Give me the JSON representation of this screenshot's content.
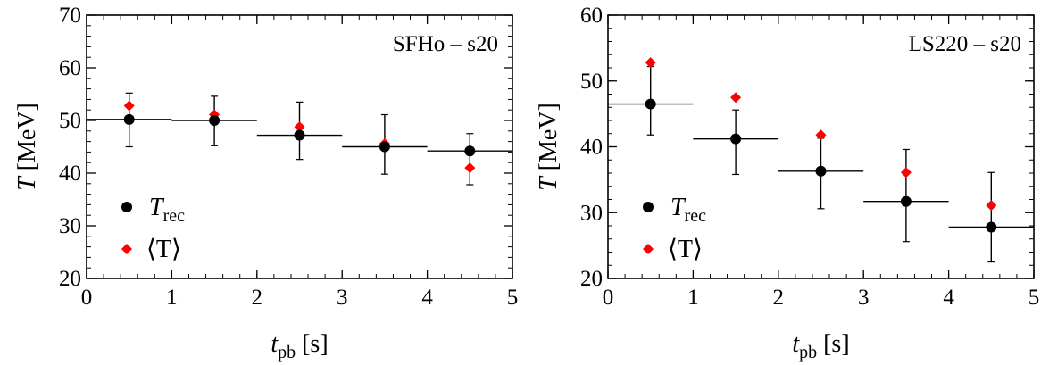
{
  "chart_data": [
    {
      "type": "scatter",
      "annotation": "SFHo – s20",
      "xlabel": {
        "main": "t",
        "sub": "pb",
        "unit": " [s]"
      },
      "ylabel": {
        "main": "T",
        "unit": " [MeV]"
      },
      "xlim": [
        0,
        5
      ],
      "ylim": [
        20,
        70
      ],
      "xticks": [
        0,
        1,
        2,
        3,
        4,
        5
      ],
      "yticks": [
        20,
        30,
        40,
        50,
        60,
        70
      ],
      "legend_position": "bottom-left",
      "series": [
        {
          "name": {
            "main": "T",
            "sub": "rec"
          },
          "marker": "circle",
          "color": "#000000",
          "x": [
            0.5,
            1.5,
            2.5,
            3.5,
            4.5
          ],
          "y": [
            50.2,
            50.0,
            47.2,
            45.0,
            44.2
          ],
          "xerr": [
            0.5,
            0.5,
            0.5,
            0.5,
            0.5
          ],
          "yerr_low": [
            5.2,
            4.8,
            4.6,
            5.2,
            6.4
          ],
          "yerr_high": [
            5.0,
            4.6,
            6.3,
            6.1,
            3.3
          ]
        },
        {
          "name": {
            "main": "⟨T⟩"
          },
          "marker": "diamond",
          "color": "#ff0000",
          "x": [
            0.5,
            1.5,
            2.5,
            3.5,
            4.5
          ],
          "y": [
            52.8,
            51.1,
            48.8,
            45.6,
            41.0
          ]
        }
      ]
    },
    {
      "type": "scatter",
      "annotation": "LS220 – s20",
      "xlabel": {
        "main": "t",
        "sub": "pb",
        "unit": " [s]"
      },
      "ylabel": {
        "main": "T",
        "unit": " [MeV]"
      },
      "xlim": [
        0,
        5
      ],
      "ylim": [
        20,
        60
      ],
      "xticks": [
        0,
        1,
        2,
        3,
        4,
        5
      ],
      "yticks": [
        20,
        30,
        40,
        50,
        60
      ],
      "legend_position": "bottom-left",
      "series": [
        {
          "name": {
            "main": "T",
            "sub": "rec"
          },
          "marker": "circle",
          "color": "#000000",
          "x": [
            0.5,
            1.5,
            2.5,
            3.5,
            4.5
          ],
          "y": [
            46.5,
            41.2,
            36.3,
            31.7,
            27.8
          ],
          "xerr": [
            0.5,
            0.5,
            0.5,
            0.5,
            0.5
          ],
          "yerr_low": [
            4.7,
            5.4,
            5.7,
            6.1,
            5.3
          ],
          "yerr_high": [
            5.7,
            4.4,
            5.0,
            7.9,
            8.3
          ]
        },
        {
          "name": {
            "main": "⟨T⟩"
          },
          "marker": "diamond",
          "color": "#ff0000",
          "x": [
            0.5,
            1.5,
            2.5,
            3.5,
            4.5
          ],
          "y": [
            52.8,
            47.5,
            41.8,
            36.1,
            31.1
          ]
        }
      ]
    }
  ]
}
